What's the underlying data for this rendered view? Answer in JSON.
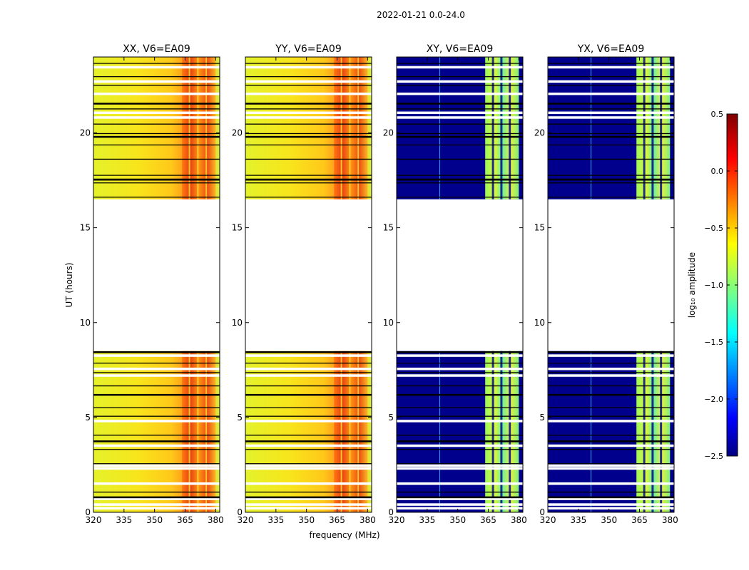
{
  "suptitle": "2022-01-21 0.0-24.0",
  "chart_data": {
    "type": "heatmap",
    "xlabel": "frequency (MHz)",
    "ylabel": "UT (hours)",
    "xlim": [
      320,
      382
    ],
    "ylim": [
      0,
      24
    ],
    "x_ticks": [
      320,
      335,
      350,
      365,
      380
    ],
    "y_ticks": [
      0,
      5,
      10,
      15,
      20
    ],
    "x_tick_labels": [
      "320",
      "335",
      "350",
      "365",
      "380"
    ],
    "y_tick_labels": [
      "0",
      "5",
      "10",
      "15",
      "20"
    ],
    "panels": [
      {
        "title": "XX, V6=EA09",
        "kind": "parallel"
      },
      {
        "title": "YY, V6=EA09",
        "kind": "parallel"
      },
      {
        "title": "XY, V6=EA09",
        "kind": "cross"
      },
      {
        "title": "YX, V6=EA09",
        "kind": "cross"
      }
    ],
    "data_gap_hours": [
      8.5,
      16.5
    ],
    "high_amplitude_band_mhz": [
      363.5,
      380
    ],
    "colorbar": {
      "label": "log₁₀ amplitude",
      "range": [
        -2.5,
        0.5
      ],
      "ticks": [
        0.5,
        0.0,
        -0.5,
        -1.0,
        -1.5,
        -2.0,
        -2.5
      ],
      "tick_labels": [
        "0.5",
        "0.0",
        "−0.5",
        "−1.0",
        "−1.5",
        "−2.0",
        "−2.5"
      ],
      "colormap": "jet"
    },
    "flagged_rows_hours_white": [
      0.2,
      0.4,
      0.7,
      1.5,
      2.3,
      2.45,
      3.5,
      4.8,
      7.2,
      7.55,
      8.25,
      20.8,
      21.05,
      22.05,
      22.7,
      23.45
    ],
    "flagged_rows_hours_black": [
      0.8,
      1.05,
      2.55,
      3.3,
      3.75,
      4.05,
      5.05,
      5.5,
      6.2,
      6.65,
      7.35,
      7.85,
      8.45,
      16.6,
      17.35,
      17.5,
      17.55,
      17.75,
      18.6,
      19.35,
      19.8,
      19.95,
      20.45,
      21.25,
      21.55,
      22.5,
      22.95,
      23.65
    ]
  }
}
